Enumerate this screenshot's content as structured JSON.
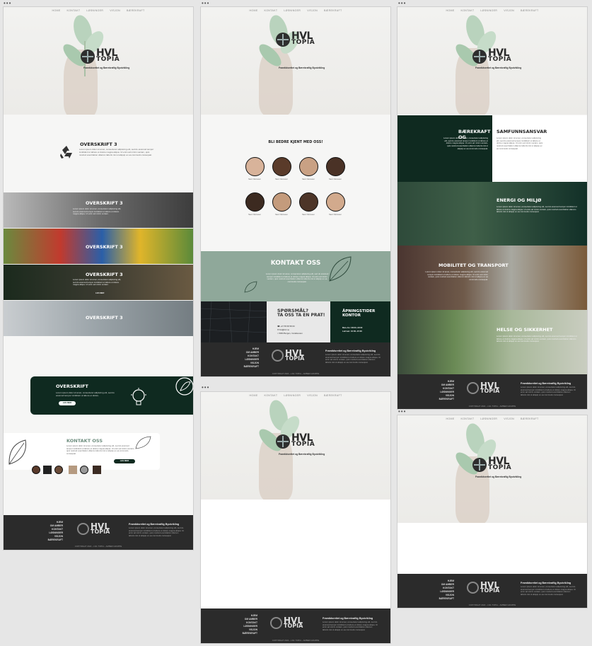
{
  "nav": [
    "HOME",
    "KONTAKT",
    "LØSNINGER",
    "VISJON",
    "BÆREKRAFT"
  ],
  "brand": {
    "word1": "HVL",
    "word2": "TOPIA",
    "tagline": "Framtidsrettet og Bærekraftig Byutvikling"
  },
  "footer": {
    "links": [
      "HJEM",
      "OM AMBER",
      "KONTAKT",
      "LØSNINGER",
      "VISJON",
      "BÆREKRAFT"
    ],
    "title": "Framtidsrettet og Bærekraftig Byutvikling",
    "text": "Lorem ipsum dolor sit amet, consectetur adipiscing elit, sed do eiusmod tempor incididunt ut labore et dolore magna aliqua. Ut enim ad minim veniam, quis nostrud exercitation ullamco laboris nisi ut aliquip ex ea commodo consequat.",
    "copyright": "COPYRIGHT 2022 – HVL TOPIA – AMBER GRUPPE"
  },
  "frame1": {
    "section_title": "OVERSKRIFT 3",
    "section_text": "Lorem ipsum dolor sit amet, consectetur adipiscing elit, sed do eiusmod tempor incididunt ut labore et dolore magna aliqua. Ut enim ad minim veniam, quis nostrud exercitation ullamco laboris nisi ut aliquip ex ea commodo consequat.",
    "banners": [
      "OVERSKRIFT 3",
      "OVERSKRIFT 3",
      "OVERSKRIFT 3",
      "OVERSKRIFT 3"
    ],
    "banner_text": "Lorem ipsum dolor sit amet, consectetur adipiscing elit, sed do eiusmod tempor incididunt ut labore et dolore magna aliqua. Ut enim ad minim veniam.",
    "banner_link": "LES MER",
    "card": {
      "title": "OVERSKRIFT",
      "text": "Lorem ipsum dolor sit amet, consectetur adipiscing elit, sed do eiusmod tempor incididunt ut labore et dolore.",
      "button": "LES MER"
    },
    "contact": {
      "title": "KONTAKT OSS",
      "text": "Lorem ipsum dolor sit amet, consectetur adipiscing elit, sed do eiusmod tempor incididunt ut labore et dolore magna aliqua. Ut enim ad minim veniam, quis nostrud exercitation ullamco laboris nisi ut aliquip ex ea commodo consequat.",
      "button": "LES MER"
    }
  },
  "frame2": {
    "team_title": "BLI BEDRE KJENT MED OSS!",
    "members": [
      "Navn Navnesen",
      "Navn Navnesen",
      "Navn Navnesen",
      "Navn Navnesen",
      "Navn Navnesen",
      "Navn Navnesen",
      "Navn Navnesen",
      "Navn Navnesen"
    ],
    "role": "Rolle",
    "contact_title": "KONTAKT OSS",
    "contact_text": "Lorem ipsum dolor sit amet, consectetur adipiscing elit, sed do eiusmod tempor incididunt ut labore et dolore magna aliqua. Ut enim ad minim veniam, quis nostrud exercitation ullamco laboris nisi ut aliquip ex ea commodo consequat.",
    "question_title": "SPØRSMÅL?",
    "question_sub": "TA OSS TA EN PRAT!",
    "phone": "+47 55 58 58 00",
    "email": "hvl@hvl.no",
    "address": "5063 Bergen, Inndalsveien",
    "hours_title": "ÅPNINGSTIDER KONTOR",
    "hours": [
      "Man–fre: 08:00–16:00",
      "Lør/søn: 10:00–15:00"
    ]
  },
  "frame3": {
    "sections": [
      {
        "title": "BÆREKRAFT OG",
        "title2": "SAMFUNNSANSVAR",
        "text": "Lorem ipsum dolor sit amet, consectetur adipiscing elit, sed do eiusmod tempor incididunt ut labore et dolore magna aliqua. Ut enim ad minim veniam, quis nostrud exercitation ullamco laboris nisi ut aliquip ex ea commodo consequat."
      },
      {
        "title": "ENERGI OG MILJØ",
        "text": "Lorem ipsum dolor sit amet, consectetur adipiscing elit, sed do eiusmod tempor incididunt ut labore et dolore magna aliqua. Ut enim ad minim veniam, quis nostrud exercitation ullamco laboris nisi ut aliquip ex ea commodo consequat."
      },
      {
        "title": "MOBILITET OG TRANSPORT",
        "text": "Lorem ipsum dolor sit amet, consectetur adipiscing elit, sed do eiusmod tempor incididunt ut labore et dolore magna aliqua. Ut enim ad minim veniam, quis nostrud exercitation ullamco laboris nisi ut aliquip ex ea commodo consequat."
      },
      {
        "title": "HELSE OG SIKKERHET",
        "text": "Lorem ipsum dolor sit amet, consectetur adipiscing elit, sed do eiusmod tempor incididunt ut labore et dolore magna aliqua. Ut enim ad minim veniam, quis nostrud exercitation ullamco laboris nisi ut aliquip ex ea commodo consequat."
      }
    ]
  },
  "colors": {
    "dark_green": "#0f2a20",
    "sage": "#8fa89a",
    "footer": "#2b2b2b"
  }
}
